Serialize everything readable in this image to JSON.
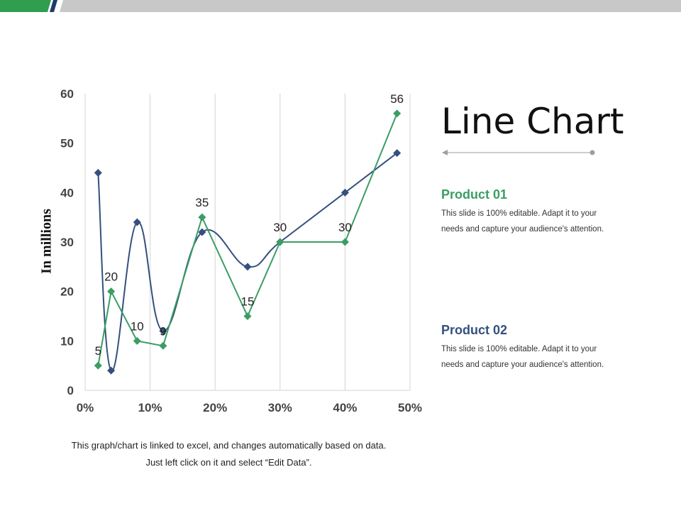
{
  "colors": {
    "series_green": "#3a9e63",
    "series_blue": "#34507e",
    "top_green": "#2f9e4f",
    "top_navy": "#1f3a6b",
    "top_gray": "#c8c8c8",
    "grid": "#d4d4d4",
    "product_01": "#3a9e63",
    "product_02": "#34507e",
    "line_gray": "#9e9e9e"
  },
  "slide": {
    "title": "Line Chart",
    "products": [
      {
        "name": "Product 01",
        "line1": "This slide is 100% editable. Adapt it to your",
        "line2": "needs and capture your audience's attention."
      },
      {
        "name": "Product 02",
        "line1": "This slide is 100% editable. Adapt it to your",
        "line2": "needs and capture your audience's attention."
      }
    ],
    "footnote_line1": "This graph/chart is linked to excel, and changes automatically based on data.",
    "footnote_line2": "Just left click on it and select “Edit Data”."
  },
  "chart_data": {
    "type": "scatter",
    "ylabel": "In millions",
    "xlim": [
      0,
      50
    ],
    "ylim": [
      0,
      60
    ],
    "x_ticks": [
      "0%",
      "10%",
      "20%",
      "30%",
      "40%",
      "50%"
    ],
    "y_ticks": [
      "0",
      "10",
      "20",
      "30",
      "40",
      "50",
      "60"
    ],
    "grid": "vertical",
    "series": [
      {
        "color": "blue",
        "smooth": true,
        "show_labels": false,
        "x": [
          2,
          4,
          8,
          12,
          18,
          25,
          30,
          40,
          48
        ],
        "y": [
          44,
          4,
          34,
          12,
          32,
          25,
          30,
          40,
          48
        ]
      },
      {
        "color": "green",
        "smooth": false,
        "show_labels": true,
        "x": [
          2,
          4,
          8,
          12,
          18,
          25,
          30,
          40,
          48
        ],
        "y": [
          5,
          20,
          10,
          9,
          35,
          15,
          30,
          30,
          56
        ]
      }
    ]
  }
}
